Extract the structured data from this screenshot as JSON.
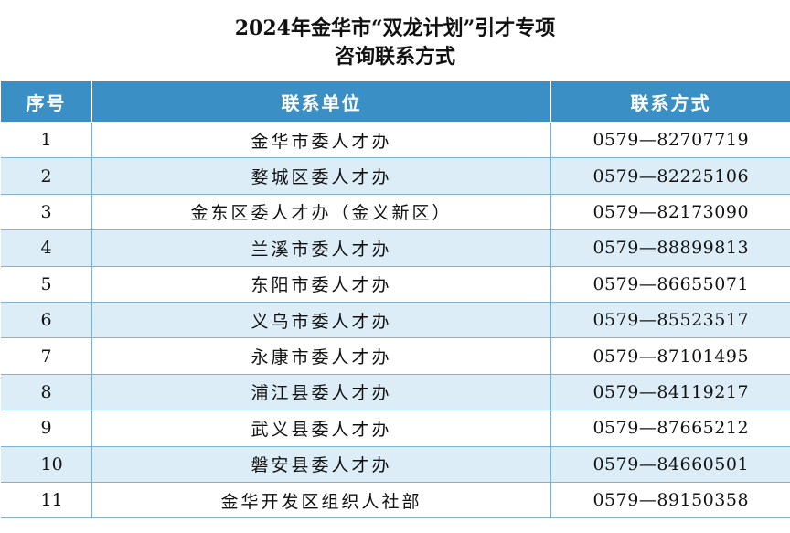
{
  "title": {
    "line1": "2024年金华市“双龙计划”引才专项",
    "line2": "咨询联系方式"
  },
  "table": {
    "headers": [
      "序号",
      "联系单位",
      "联系方式"
    ],
    "rows": [
      {
        "no": "1",
        "unit": "金华市委人才办",
        "phone": "0579—82707719"
      },
      {
        "no": "2",
        "unit": "婺城区委人才办",
        "phone": "0579—82225106"
      },
      {
        "no": "3",
        "unit": "金东区委人才办（金义新区）",
        "phone": "0579—82173090"
      },
      {
        "no": "4",
        "unit": "兰溪市委人才办",
        "phone": "0579—88899813"
      },
      {
        "no": "5",
        "unit": "东阳市委人才办",
        "phone": "0579—86655071"
      },
      {
        "no": "6",
        "unit": "义乌市委人才办",
        "phone": "0579—85523517"
      },
      {
        "no": "7",
        "unit": "永康市委人才办",
        "phone": "0579—87101495"
      },
      {
        "no": "8",
        "unit": "浦江县委人才办",
        "phone": "0579—84119217"
      },
      {
        "no": "9",
        "unit": "武义县委人才办",
        "phone": "0579—87665212"
      },
      {
        "no": "10",
        "unit": "磐安县委人才办",
        "phone": "0579—84660501"
      },
      {
        "no": "11",
        "unit": "金华开发区组织人社部",
        "phone": "0579—89150358"
      }
    ]
  },
  "colors": {
    "header_bg": "#3a8fc4",
    "stripe_bg": "#dcedf7",
    "grid_line": "#7fb3d3"
  }
}
